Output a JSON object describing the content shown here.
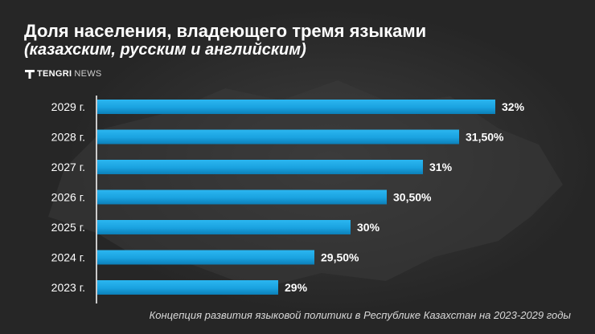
{
  "header": {
    "title": "Доля населения, владеющего тремя языками",
    "subtitle": "(казахским, русским и английским)"
  },
  "logo": {
    "part1": "TENGRI",
    "part2": "NEWS"
  },
  "source": "Концепция развития языковой политики в Республике Казахстан на 2023-2029 годы",
  "colors": {
    "bar": "#1aa8e6",
    "bar_dark": "#0c7fb8",
    "text": "#ffffff"
  },
  "chart_data": {
    "type": "bar",
    "orientation": "horizontal",
    "categories": [
      "2029 г.",
      "2028 г.",
      "2027 г.",
      "2026 г.",
      "2025 г.",
      "2024 г.",
      "2023 г."
    ],
    "values": [
      32,
      31.5,
      31,
      30.5,
      30,
      29.5,
      29
    ],
    "value_labels": [
      "32%",
      "31,50%",
      "31%",
      "30,50%",
      "30%",
      "29,50%",
      "29%"
    ],
    "xlim": [
      26.5,
      32.5
    ],
    "grid": false,
    "legend": "none"
  }
}
